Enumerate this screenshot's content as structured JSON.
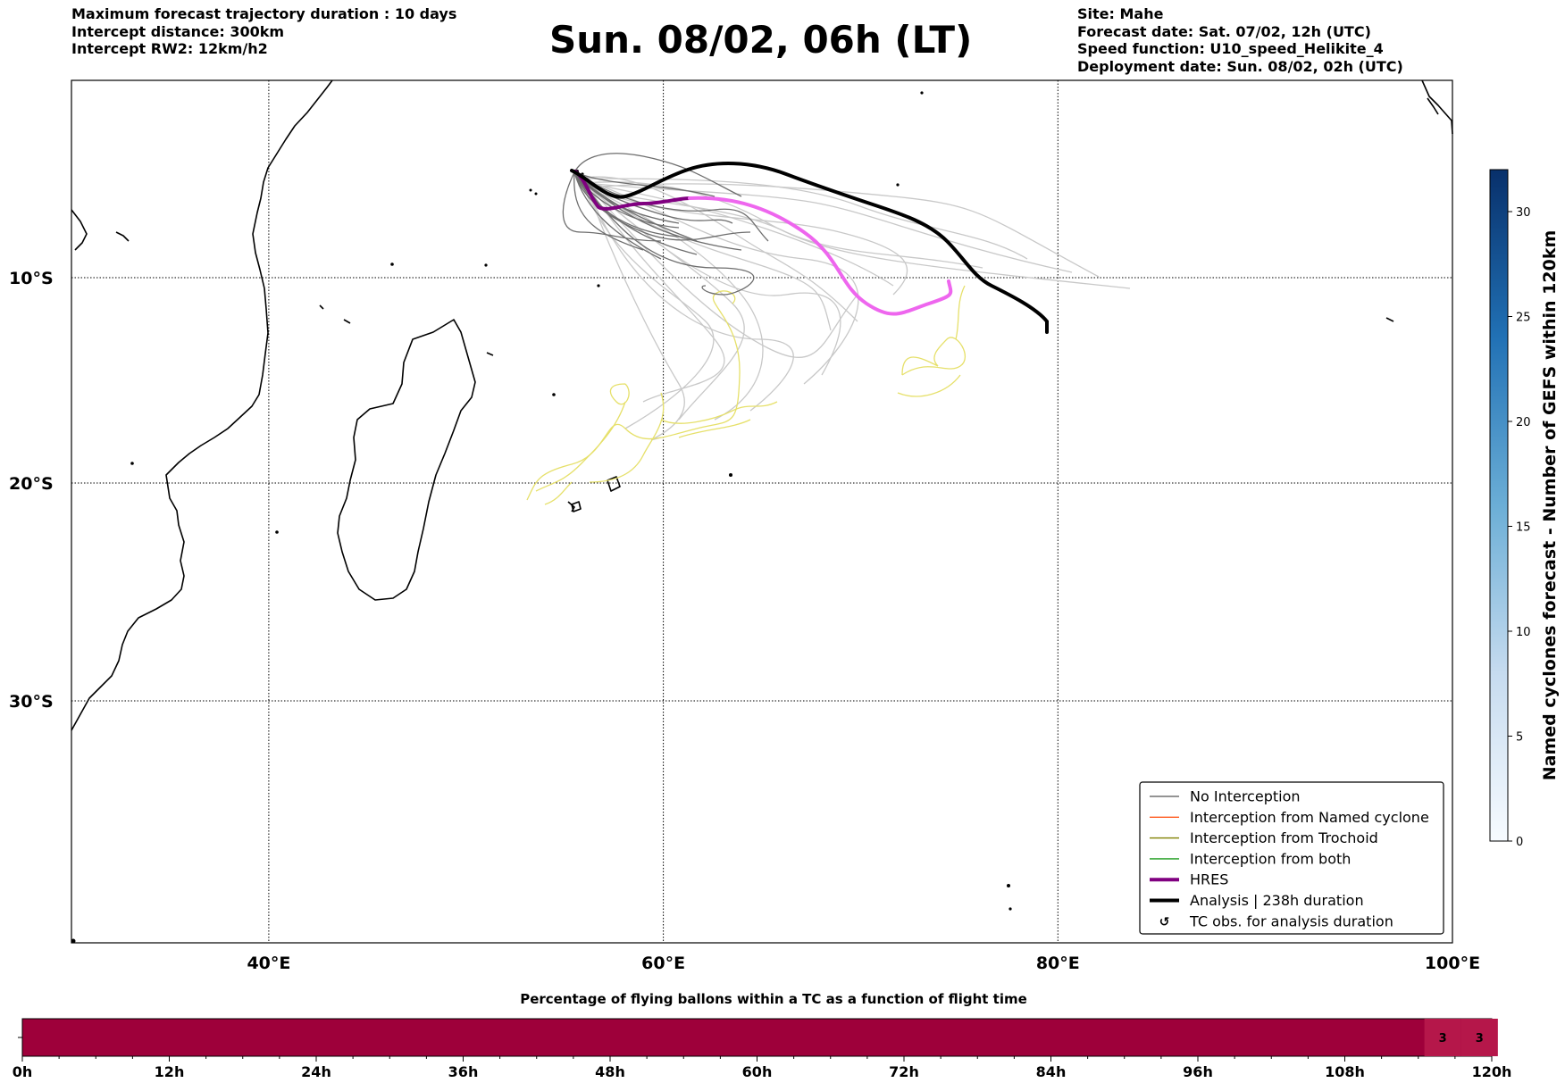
{
  "header_left": {
    "line1": "Maximum forecast trajectory duration : 10 days",
    "line2": "Intercept distance: 300km",
    "line3": "Intercept RW2: 12km/h2"
  },
  "header_right": {
    "line1": "Site: Mahe",
    "line2": "Forecast date: Sat. 07/02, 12h (UTC)",
    "line3": "Speed function: U10_speed_Helikite_4",
    "line4": "Deployment date: Sun. 08/02, 02h (UTC)"
  },
  "title": "Sun. 08/02, 06h (LT)",
  "map": {
    "lon_range": [
      30,
      100
    ],
    "lat_range": [
      -43.5,
      0
    ],
    "lon_ticks": [
      "40°E",
      "60°E",
      "80°E",
      "100°E"
    ],
    "lat_ticks": [
      "10°S",
      "20°S",
      "30°S"
    ],
    "grid": "dotted",
    "legend_placement": "lower-right",
    "legend": [
      {
        "label": "No Interception",
        "color": "#707070",
        "style": "thin"
      },
      {
        "label": "Interception from Named cyclone",
        "color": "#ff5a1e",
        "style": "thin"
      },
      {
        "label": "Interception from Trochoid",
        "color": "#808000",
        "style": "thin"
      },
      {
        "label": "Interception from both",
        "color": "#1a9a1a",
        "style": "thin"
      },
      {
        "label": "HRES",
        "color": "#800080",
        "style": "thick"
      },
      {
        "label": "Analysis | 238h duration",
        "color": "#000000",
        "style": "thick"
      },
      {
        "label": "TC obs. for analysis duration",
        "icon": "cyclone-symbol",
        "symbol": "↺"
      }
    ],
    "colors": {
      "ensemble_light": "#c8c8c8",
      "ensemble_dark": "#6e6e6e",
      "late_segment": "#e6e06a",
      "hres_early": "#800080",
      "hres_late": "#ee66ee",
      "analysis": "#000000"
    }
  },
  "colorbar": {
    "label": "Named cyclones forecast - Number of GEFS within 120km",
    "ticks": [
      "0",
      "5",
      "10",
      "15",
      "20",
      "25",
      "30"
    ],
    "range": [
      0,
      32
    ],
    "cmap": "Blues"
  },
  "bottom_bar": {
    "title": "Percentage of flying ballons within a TC as a function of flight time",
    "ticks": [
      "0h",
      "12h",
      "24h",
      "36h",
      "48h",
      "60h",
      "72h",
      "84h",
      "96h",
      "108h",
      "120h"
    ],
    "base_color": "#9e003a",
    "highlight_color": "#b5174a",
    "cell_labels": [
      {
        "hour": 116,
        "value": "3"
      },
      {
        "hour": 119,
        "value": "3"
      }
    ]
  }
}
